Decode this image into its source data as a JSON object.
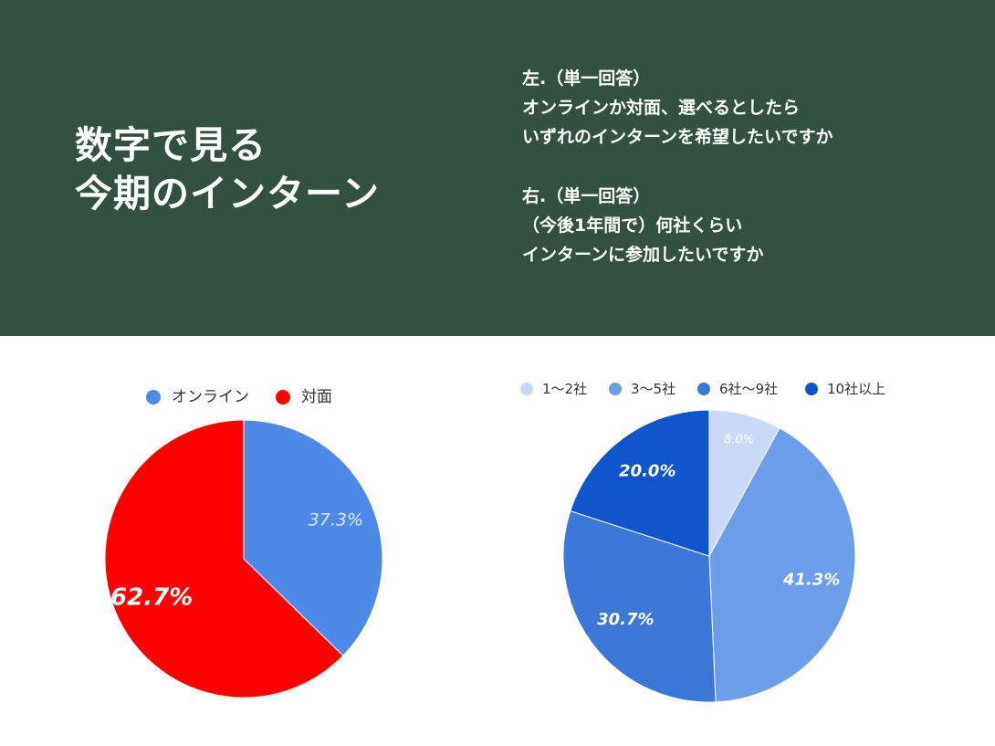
{
  "header": {
    "title_lines": [
      "数字で見る",
      "今期のインターン"
    ],
    "left_question": [
      "左.（単一回答）",
      "オンラインか対面、選べるとしたら",
      "いずれのインターンを希望したいですか"
    ],
    "right_question": [
      "右.（単一回答）",
      "（今後1年間で）何社くらい",
      "インターンに参加したいですか"
    ]
  },
  "chart_data": [
    {
      "type": "pie",
      "categories": [
        "オンライン",
        "対面"
      ],
      "values": [
        37.3,
        62.7
      ],
      "labels": [
        "37.3%",
        "62.7%"
      ],
      "colors": [
        "#4e89e8",
        "#ff0000"
      ],
      "legend_position": "top"
    },
    {
      "type": "pie",
      "categories": [
        "1〜2社",
        "3〜5社",
        "6社〜9社",
        "10社以上"
      ],
      "values": [
        8.0,
        41.3,
        30.7,
        20.0
      ],
      "labels": [
        "8.0%",
        "41.3%",
        "30.7%",
        "20.0%"
      ],
      "colors": [
        "#c9daf8",
        "#6d9eeb",
        "#3c78d8",
        "#1155cc"
      ],
      "legend_position": "top"
    }
  ]
}
